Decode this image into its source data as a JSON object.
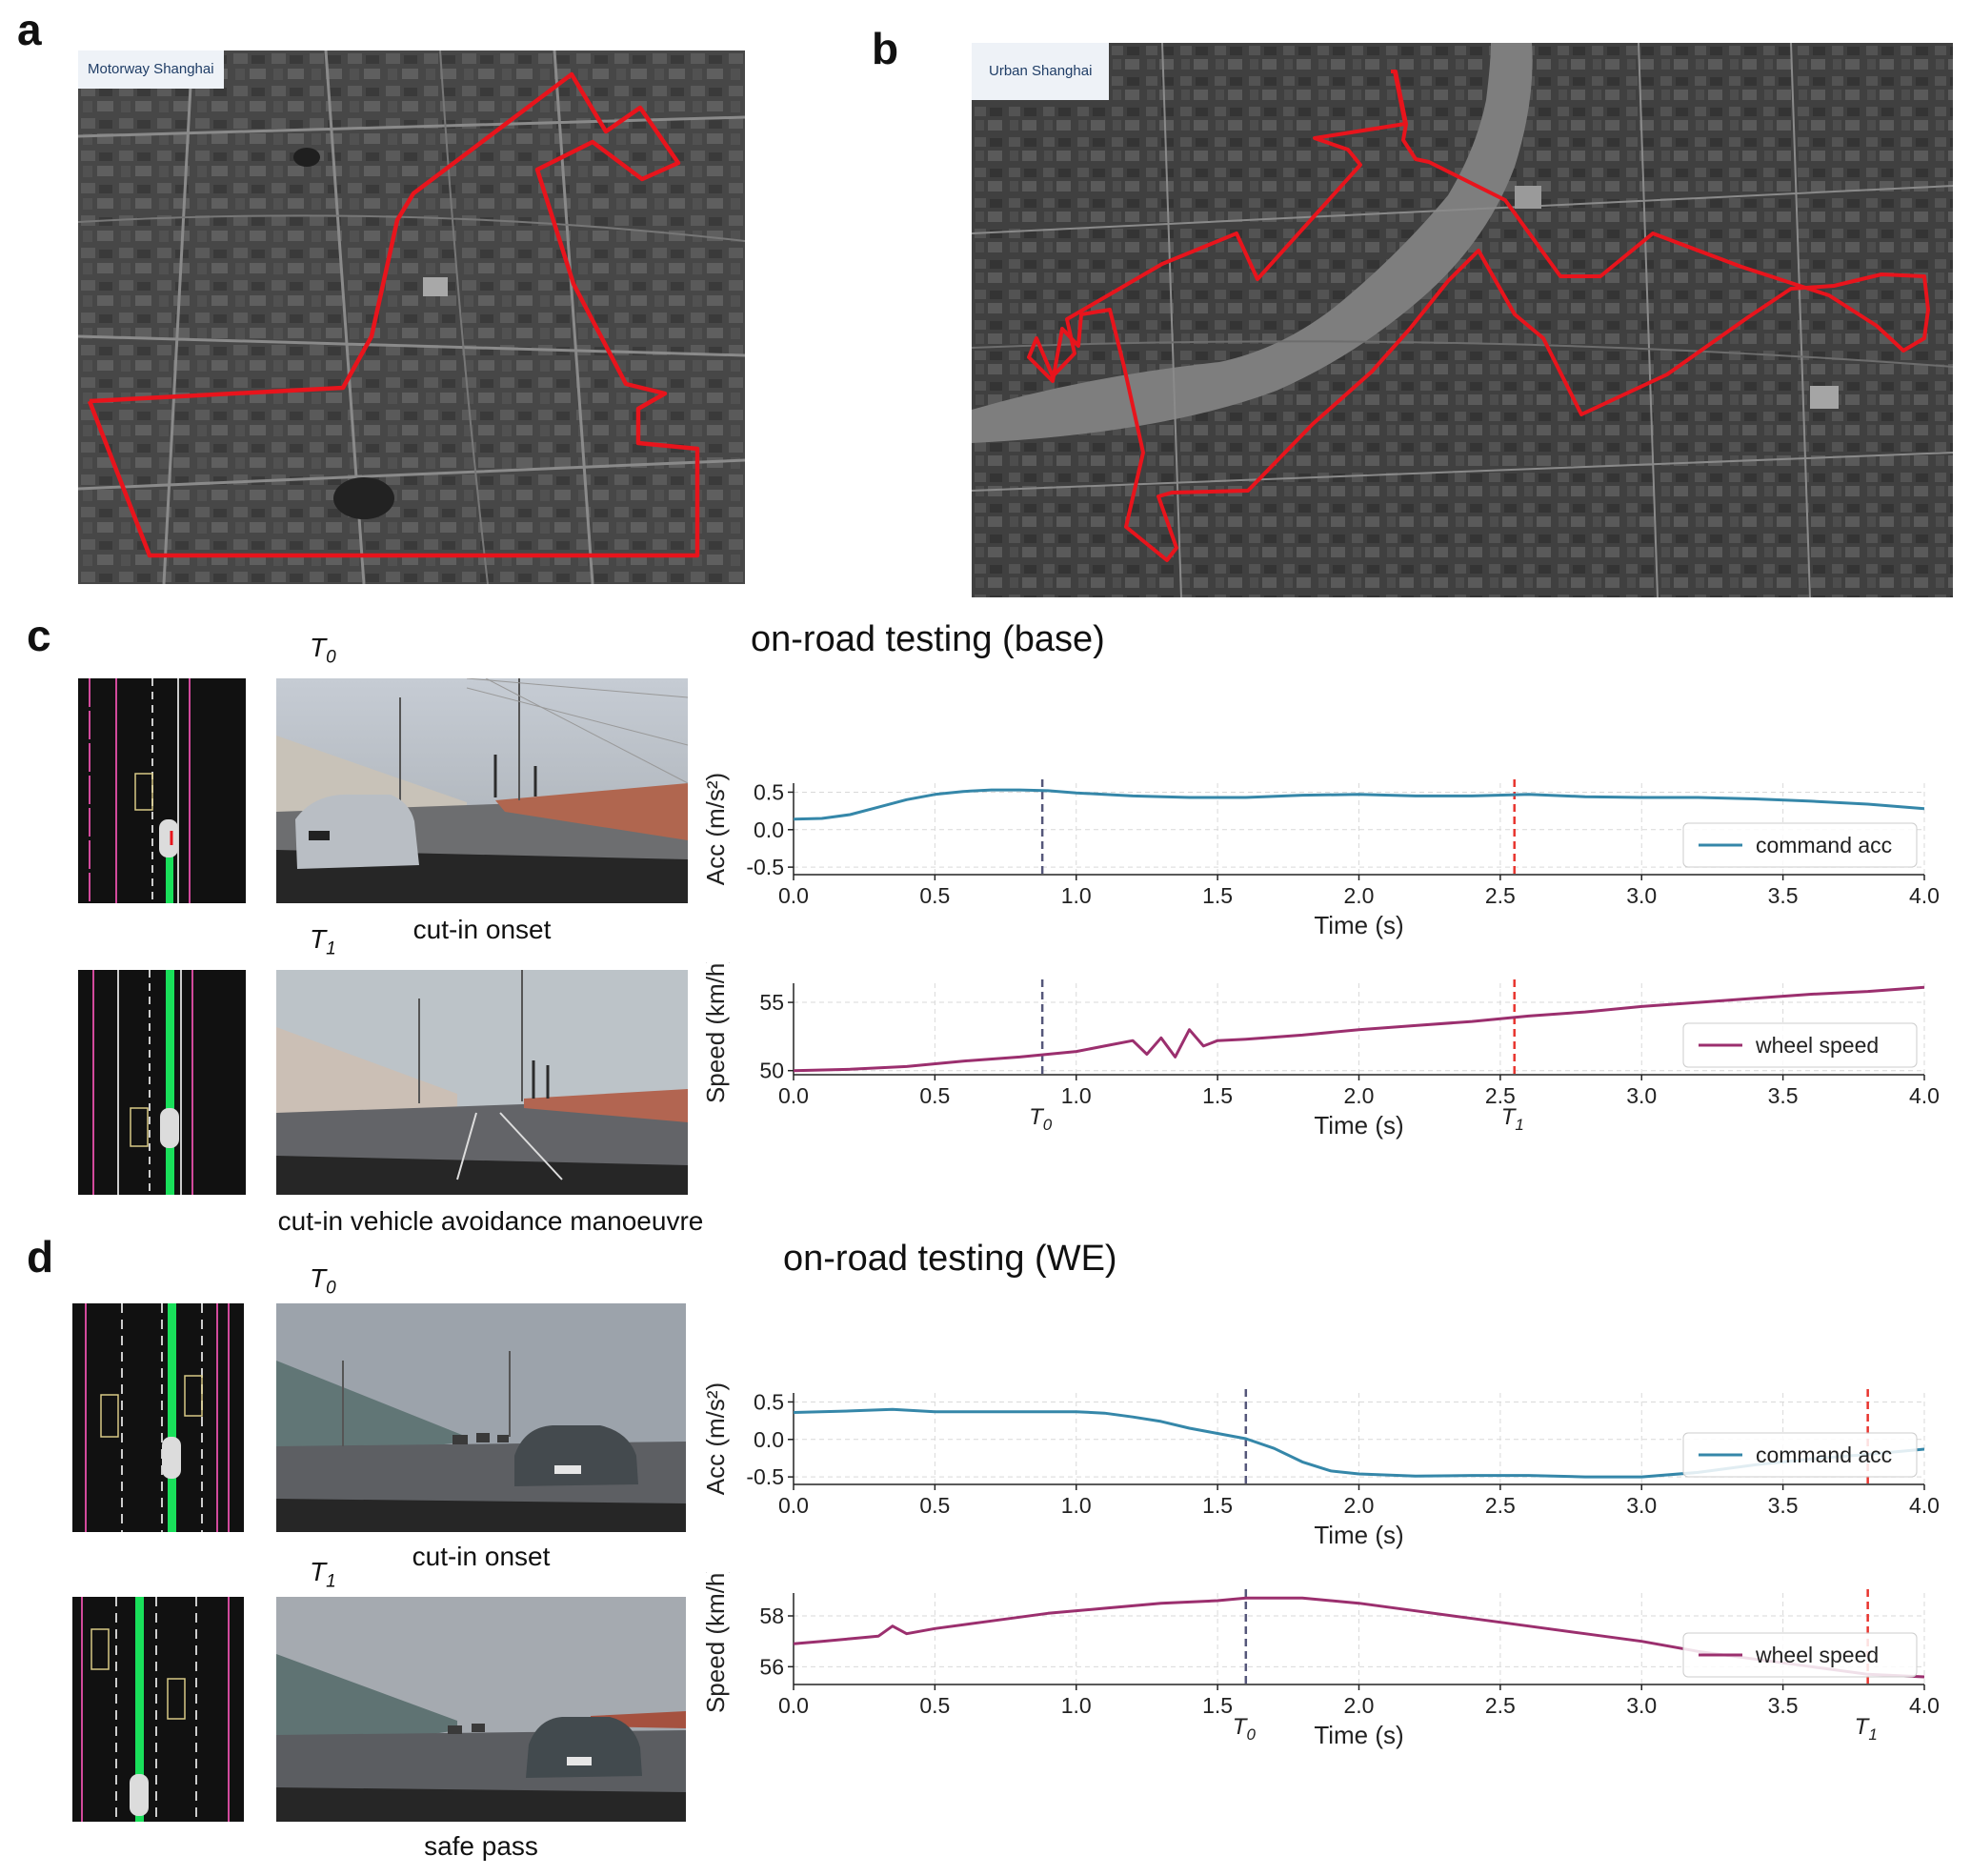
{
  "panels": {
    "a": {
      "letter": "a",
      "map_label": "Motorway Shanghai",
      "route_color": "#e8141c"
    },
    "b": {
      "letter": "b",
      "map_label": "Urban Shanghai",
      "route_color": "#e8141c"
    },
    "c": {
      "letter": "c",
      "title": "on-road testing (base)",
      "t0_label": "T",
      "t0_sub": "0",
      "t1_label": "T",
      "t1_sub": "1",
      "caption_t0": "cut-in onset",
      "caption_t1": "cut-in vehicle avoidance manoeuvre"
    },
    "d": {
      "letter": "d",
      "title": "on-road testing (WE)",
      "t0_label": "T",
      "t0_sub": "0",
      "t1_label": "T",
      "t1_sub": "1",
      "caption_t0": "cut-in onset",
      "caption_t1": "safe pass"
    }
  },
  "colors": {
    "acc": "#3587a9",
    "speed": "#9b2f6e",
    "t0_line": "#55577a",
    "t1_line": "#e8342e",
    "grid": "#d9d9d9",
    "lane_green": "#19e05a",
    "lane_pink": "#d24a9c"
  },
  "chart_data": [
    {
      "id": "c-acc",
      "type": "line",
      "xlabel": "Time (s)",
      "ylabel": "Acc (m/s²)",
      "xlim": [
        0.0,
        4.0
      ],
      "ylim": [
        -0.6,
        0.62
      ],
      "xticks": [
        "0.0",
        "0.5",
        "1.0",
        "1.5",
        "2.0",
        "2.5",
        "3.0",
        "3.5",
        "4.0"
      ],
      "yticks": [
        "0.5",
        "0.0",
        "-0.5"
      ],
      "ytick_values": [
        0.5,
        0.0,
        -0.5
      ],
      "grid": true,
      "legend": "lower-right",
      "vlines": [
        {
          "x": 0.88,
          "kind": "t0"
        },
        {
          "x": 2.55,
          "kind": "t1"
        }
      ],
      "series": [
        {
          "name": "command acc",
          "color": "#3587a9",
          "x": [
            0.0,
            0.1,
            0.2,
            0.3,
            0.4,
            0.5,
            0.6,
            0.7,
            0.8,
            0.9,
            1.0,
            1.2,
            1.4,
            1.6,
            1.8,
            2.0,
            2.2,
            2.4,
            2.6,
            2.8,
            3.0,
            3.2,
            3.4,
            3.6,
            3.8,
            4.0
          ],
          "y": [
            0.14,
            0.15,
            0.2,
            0.3,
            0.4,
            0.47,
            0.51,
            0.53,
            0.53,
            0.52,
            0.49,
            0.45,
            0.43,
            0.43,
            0.46,
            0.47,
            0.45,
            0.45,
            0.47,
            0.44,
            0.43,
            0.43,
            0.41,
            0.38,
            0.34,
            0.28
          ]
        }
      ]
    },
    {
      "id": "c-speed",
      "type": "line",
      "xlabel": "Time (s)",
      "ylabel": "Speed (km/h)",
      "xlim": [
        0.0,
        4.0
      ],
      "ylim": [
        49.7,
        56.4
      ],
      "xticks": [
        "0.0",
        "0.5",
        "1.0",
        "1.5",
        "2.0",
        "2.5",
        "3.0",
        "3.5",
        "4.0"
      ],
      "yticks": [
        "55",
        "50"
      ],
      "ytick_values": [
        55,
        50
      ],
      "grid": true,
      "legend": "lower-right",
      "vlines": [
        {
          "x": 0.88,
          "kind": "t0",
          "label": "T",
          "sub": "0"
        },
        {
          "x": 2.55,
          "kind": "t1",
          "label": "T",
          "sub": "1"
        }
      ],
      "series": [
        {
          "name": "wheel speed",
          "color": "#9b2f6e",
          "x": [
            0.0,
            0.2,
            0.4,
            0.6,
            0.8,
            1.0,
            1.1,
            1.2,
            1.25,
            1.3,
            1.35,
            1.4,
            1.45,
            1.5,
            1.6,
            1.8,
            2.0,
            2.2,
            2.4,
            2.6,
            2.8,
            3.0,
            3.2,
            3.4,
            3.6,
            3.8,
            4.0
          ],
          "y": [
            50.0,
            50.1,
            50.3,
            50.7,
            51.0,
            51.4,
            51.8,
            52.2,
            51.2,
            52.4,
            51.0,
            53.0,
            51.8,
            52.2,
            52.3,
            52.6,
            53.0,
            53.3,
            53.6,
            54.0,
            54.3,
            54.7,
            55.0,
            55.3,
            55.6,
            55.8,
            56.1
          ]
        }
      ]
    },
    {
      "id": "d-acc",
      "type": "line",
      "xlabel": "Time (s)",
      "ylabel": "Acc (m/s²)",
      "xlim": [
        0.0,
        4.0
      ],
      "ylim": [
        -0.6,
        0.62
      ],
      "xticks": [
        "0.0",
        "0.5",
        "1.0",
        "1.5",
        "2.0",
        "2.5",
        "3.0",
        "3.5",
        "4.0"
      ],
      "yticks": [
        "0.5",
        "0.0",
        "-0.5"
      ],
      "ytick_values": [
        0.5,
        0.0,
        -0.5
      ],
      "grid": true,
      "legend": "lower-right",
      "vlines": [
        {
          "x": 1.6,
          "kind": "t0"
        },
        {
          "x": 3.8,
          "kind": "t1"
        }
      ],
      "series": [
        {
          "name": "command acc",
          "color": "#3587a9",
          "x": [
            0.0,
            0.2,
            0.35,
            0.5,
            0.8,
            1.0,
            1.1,
            1.2,
            1.3,
            1.4,
            1.5,
            1.6,
            1.7,
            1.8,
            1.9,
            2.0,
            2.2,
            2.4,
            2.6,
            2.8,
            3.0,
            3.2,
            3.4,
            3.6,
            3.8,
            4.0
          ],
          "y": [
            0.36,
            0.38,
            0.4,
            0.37,
            0.37,
            0.37,
            0.35,
            0.3,
            0.24,
            0.15,
            0.08,
            0.01,
            -0.12,
            -0.3,
            -0.42,
            -0.46,
            -0.49,
            -0.48,
            -0.48,
            -0.5,
            -0.5,
            -0.44,
            -0.34,
            -0.26,
            -0.2,
            -0.13
          ]
        }
      ]
    },
    {
      "id": "d-speed",
      "type": "line",
      "xlabel": "Time (s)",
      "ylabel": "Speed (km/h)",
      "xlim": [
        0.0,
        4.0
      ],
      "ylim": [
        55.3,
        58.9
      ],
      "xticks": [
        "0.0",
        "0.5",
        "1.0",
        "1.5",
        "2.0",
        "2.5",
        "3.0",
        "3.5",
        "4.0"
      ],
      "yticks": [
        "58",
        "56"
      ],
      "ytick_values": [
        58,
        56
      ],
      "grid": true,
      "legend": "lower-right",
      "vlines": [
        {
          "x": 1.6,
          "kind": "t0",
          "label": "T",
          "sub": "0"
        },
        {
          "x": 3.8,
          "kind": "t1",
          "label": "T",
          "sub": "1"
        }
      ],
      "series": [
        {
          "name": "wheel speed",
          "color": "#9b2f6e",
          "x": [
            0.0,
            0.1,
            0.2,
            0.3,
            0.35,
            0.4,
            0.5,
            0.7,
            0.9,
            1.1,
            1.3,
            1.5,
            1.6,
            1.7,
            1.8,
            1.9,
            2.0,
            2.2,
            2.4,
            2.6,
            2.8,
            3.0,
            3.2,
            3.4,
            3.6,
            3.8,
            4.0
          ],
          "y": [
            56.9,
            57.0,
            57.1,
            57.2,
            57.6,
            57.3,
            57.5,
            57.8,
            58.1,
            58.3,
            58.5,
            58.6,
            58.7,
            58.7,
            58.7,
            58.6,
            58.5,
            58.2,
            57.9,
            57.6,
            57.3,
            57.0,
            56.6,
            56.3,
            56.0,
            55.7,
            55.6
          ]
        }
      ]
    }
  ],
  "legend_labels": {
    "acc": "command acc",
    "speed": "wheel speed"
  },
  "icons": {
    "ego_vehicle": "car-icon",
    "other_vehicle": "vehicle-box-icon"
  }
}
